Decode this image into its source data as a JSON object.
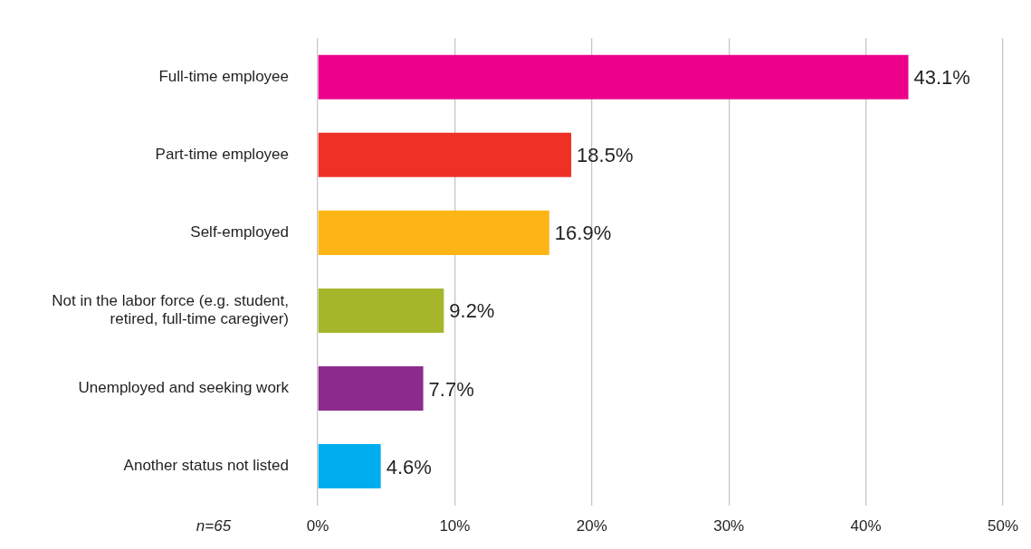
{
  "chart_data": {
    "type": "bar",
    "orientation": "horizontal",
    "categories": [
      "Full-time employee",
      "Part-time employee",
      "Self-employed",
      "Not in the labor force (e.g. student, retired, full-time caregiver)",
      "Unemployed and seeking work",
      "Another status not listed"
    ],
    "values": [
      43.1,
      18.5,
      16.9,
      9.2,
      7.7,
      4.6
    ],
    "colors": [
      "#ec008c",
      "#ef3125",
      "#fdb515",
      "#a5b62a",
      "#8b2b8d",
      "#00aeef"
    ],
    "value_labels": [
      "43.1%",
      "18.5%",
      "16.9%",
      "9.2%",
      "7.7%",
      "4.6%"
    ],
    "xlim": [
      0,
      50
    ],
    "xticks": [
      {
        "value": 0,
        "label": "0%"
      },
      {
        "value": 10,
        "label": "10%"
      },
      {
        "value": 20,
        "label": "20%"
      },
      {
        "value": 30,
        "label": "30%"
      },
      {
        "value": 40,
        "label": "40%"
      },
      {
        "value": 50,
        "label": "50%"
      }
    ],
    "grid": "x",
    "legend": false,
    "annotations": [
      "n=65"
    ]
  }
}
